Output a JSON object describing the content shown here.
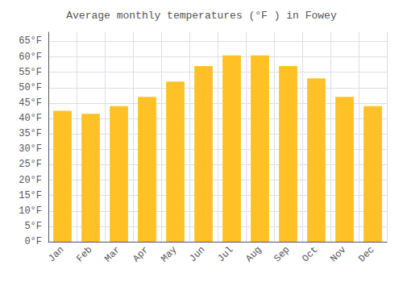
{
  "chart_data": {
    "type": "bar",
    "title": "Average monthly temperatures (°F ) in Fowey",
    "categories": [
      "Jan",
      "Feb",
      "Mar",
      "Apr",
      "May",
      "Jun",
      "Jul",
      "Aug",
      "Sep",
      "Oct",
      "Nov",
      "Dec"
    ],
    "values": [
      42.5,
      41.5,
      44,
      47,
      52,
      57,
      60.5,
      60.5,
      57,
      53,
      47,
      44
    ],
    "color": "#FFC125",
    "ylim": [
      0,
      68
    ],
    "yticks": [
      {
        "value": 0,
        "label": "0°F"
      },
      {
        "value": 5,
        "label": "5°F"
      },
      {
        "value": 10,
        "label": "10°F"
      },
      {
        "value": 15,
        "label": "15°F"
      },
      {
        "value": 20,
        "label": "20°F"
      },
      {
        "value": 25,
        "label": "25°F"
      },
      {
        "value": 30,
        "label": "30°F"
      },
      {
        "value": 35,
        "label": "35°F"
      },
      {
        "value": 40,
        "label": "40°F"
      },
      {
        "value": 45,
        "label": "45°F"
      },
      {
        "value": 50,
        "label": "50°F"
      },
      {
        "value": 55,
        "label": "55°F"
      },
      {
        "value": 60,
        "label": "60°F"
      },
      {
        "value": 65,
        "label": "65°F"
      }
    ],
    "grid": true
  }
}
